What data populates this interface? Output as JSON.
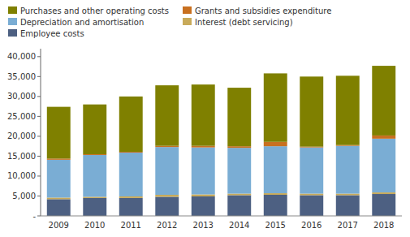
{
  "chart_data": {
    "type": "bar",
    "stacked": true,
    "grid": false,
    "legend": "top",
    "categories": [
      "2009",
      "2010",
      "2011",
      "2012",
      "2013",
      "2014",
      "2015",
      "2016",
      "2017",
      "2018"
    ],
    "series": [
      {
        "name": "Employee costs",
        "color": "#4d6082",
        "values": [
          4200,
          4500,
          4500,
          4800,
          4900,
          5200,
          5300,
          5200,
          5200,
          5500
        ]
      },
      {
        "name": "Interest (debt servicing)",
        "color": "#c8aa5a",
        "values": [
          400,
          300,
          400,
          500,
          500,
          400,
          400,
          400,
          400,
          400
        ]
      },
      {
        "name": "Depreciation and amortisation",
        "color": "#7aadd4",
        "values": [
          9500,
          10500,
          11000,
          12000,
          11800,
          11500,
          11800,
          11600,
          12000,
          13500
        ]
      },
      {
        "name": "Grants and subsidies expenditure",
        "color": "#c87020",
        "values": [
          300,
          200,
          200,
          300,
          400,
          400,
          1100,
          200,
          200,
          800
        ]
      },
      {
        "name": "Purchases and other operating costs",
        "color": "#7f8000",
        "values": [
          13000,
          12500,
          13900,
          15200,
          15400,
          14700,
          17200,
          17600,
          17400,
          17500
        ]
      }
    ],
    "ylim": [
      0,
      42000
    ],
    "yticks": [
      {
        "value": 0,
        "label": "-"
      },
      {
        "value": 5000,
        "label": "5,000"
      },
      {
        "value": 10000,
        "label": "10,000"
      },
      {
        "value": 15000,
        "label": "15,000"
      },
      {
        "value": 20000,
        "label": "20,000"
      },
      {
        "value": 25000,
        "label": "25,000"
      },
      {
        "value": 30000,
        "label": "30,000"
      },
      {
        "value": 35000,
        "label": "35,000"
      },
      {
        "value": 40000,
        "label": "40,000"
      }
    ]
  }
}
